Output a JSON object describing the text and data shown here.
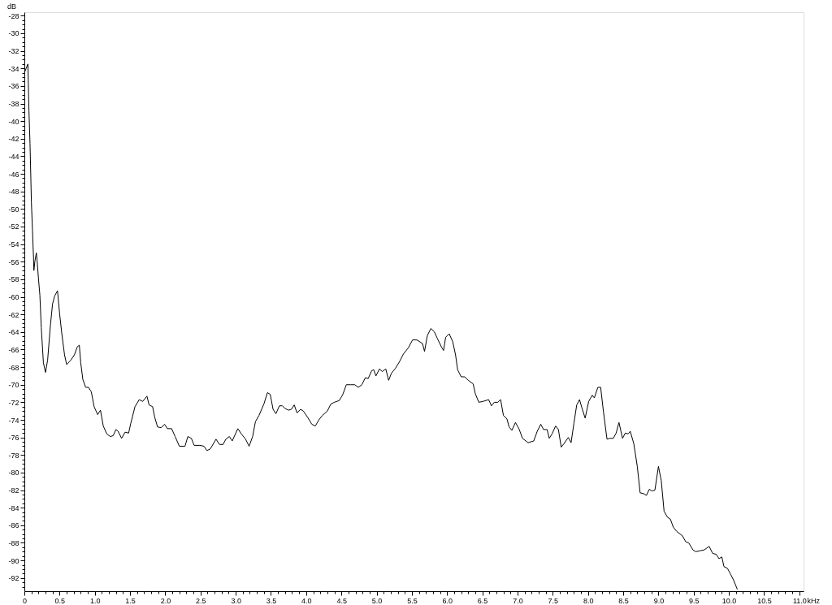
{
  "chart_data": {
    "type": "line",
    "ylabel": "dB",
    "xlabel": "kHz",
    "marker": "none",
    "line_style": "solid",
    "xlim": [
      0,
      11.06
    ],
    "ylim": [
      -93.5,
      -27.6
    ],
    "xticks": [
      {
        "value": 0,
        "label": "0"
      },
      {
        "value": 0.1,
        "label": null
      },
      {
        "value": 0.2,
        "label": null
      },
      {
        "value": 0.3,
        "label": null
      },
      {
        "value": 0.4,
        "label": null
      },
      {
        "value": 0.5,
        "label": "0.5"
      },
      {
        "value": 0.6,
        "label": null
      },
      {
        "value": 0.7,
        "label": null
      },
      {
        "value": 0.8,
        "label": null
      },
      {
        "value": 0.9,
        "label": null
      },
      {
        "value": 1.0,
        "label": "1.0"
      },
      {
        "value": 1.1,
        "label": null
      },
      {
        "value": 1.2,
        "label": null
      },
      {
        "value": 1.3,
        "label": null
      },
      {
        "value": 1.4,
        "label": null
      },
      {
        "value": 1.5,
        "label": "1.5"
      },
      {
        "value": 1.6,
        "label": null
      },
      {
        "value": 1.7,
        "label": null
      },
      {
        "value": 1.8,
        "label": null
      },
      {
        "value": 1.9,
        "label": null
      },
      {
        "value": 2.0,
        "label": "2.0"
      },
      {
        "value": 2.1,
        "label": null
      },
      {
        "value": 2.2,
        "label": null
      },
      {
        "value": 2.3,
        "label": null
      },
      {
        "value": 2.4,
        "label": null
      },
      {
        "value": 2.5,
        "label": "2.5"
      },
      {
        "value": 2.6,
        "label": null
      },
      {
        "value": 2.7,
        "label": null
      },
      {
        "value": 2.8,
        "label": null
      },
      {
        "value": 2.9,
        "label": null
      },
      {
        "value": 3.0,
        "label": "3.0"
      },
      {
        "value": 3.1,
        "label": null
      },
      {
        "value": 3.2,
        "label": null
      },
      {
        "value": 3.3,
        "label": null
      },
      {
        "value": 3.4,
        "label": null
      },
      {
        "value": 3.5,
        "label": "3.5"
      },
      {
        "value": 3.6,
        "label": null
      },
      {
        "value": 3.7,
        "label": null
      },
      {
        "value": 3.8,
        "label": null
      },
      {
        "value": 3.9,
        "label": null
      },
      {
        "value": 4.0,
        "label": "4.0"
      },
      {
        "value": 4.1,
        "label": null
      },
      {
        "value": 4.2,
        "label": null
      },
      {
        "value": 4.3,
        "label": null
      },
      {
        "value": 4.4,
        "label": null
      },
      {
        "value": 4.5,
        "label": "4.5"
      },
      {
        "value": 4.6,
        "label": null
      },
      {
        "value": 4.7,
        "label": null
      },
      {
        "value": 4.8,
        "label": null
      },
      {
        "value": 4.9,
        "label": null
      },
      {
        "value": 5.0,
        "label": "5.0"
      },
      {
        "value": 5.1,
        "label": null
      },
      {
        "value": 5.2,
        "label": null
      },
      {
        "value": 5.3,
        "label": null
      },
      {
        "value": 5.4,
        "label": null
      },
      {
        "value": 5.5,
        "label": "5.5"
      },
      {
        "value": 5.6,
        "label": null
      },
      {
        "value": 5.7,
        "label": null
      },
      {
        "value": 5.8,
        "label": null
      },
      {
        "value": 5.9,
        "label": null
      },
      {
        "value": 6.0,
        "label": "6.0"
      },
      {
        "value": 6.1,
        "label": null
      },
      {
        "value": 6.2,
        "label": null
      },
      {
        "value": 6.3,
        "label": null
      },
      {
        "value": 6.4,
        "label": null
      },
      {
        "value": 6.5,
        "label": "6.5"
      },
      {
        "value": 6.6,
        "label": null
      },
      {
        "value": 6.7,
        "label": null
      },
      {
        "value": 6.8,
        "label": null
      },
      {
        "value": 6.9,
        "label": null
      },
      {
        "value": 7.0,
        "label": "7.0"
      },
      {
        "value": 7.1,
        "label": null
      },
      {
        "value": 7.2,
        "label": null
      },
      {
        "value": 7.3,
        "label": null
      },
      {
        "value": 7.4,
        "label": null
      },
      {
        "value": 7.5,
        "label": "7.5"
      },
      {
        "value": 7.6,
        "label": null
      },
      {
        "value": 7.7,
        "label": null
      },
      {
        "value": 7.8,
        "label": null
      },
      {
        "value": 7.9,
        "label": null
      },
      {
        "value": 8.0,
        "label": "8.0"
      },
      {
        "value": 8.1,
        "label": null
      },
      {
        "value": 8.2,
        "label": null
      },
      {
        "value": 8.3,
        "label": null
      },
      {
        "value": 8.4,
        "label": null
      },
      {
        "value": 8.5,
        "label": "8.5"
      },
      {
        "value": 8.6,
        "label": null
      },
      {
        "value": 8.7,
        "label": null
      },
      {
        "value": 8.8,
        "label": null
      },
      {
        "value": 8.9,
        "label": null
      },
      {
        "value": 9.0,
        "label": "9.0"
      },
      {
        "value": 9.1,
        "label": null
      },
      {
        "value": 9.2,
        "label": null
      },
      {
        "value": 9.3,
        "label": null
      },
      {
        "value": 9.4,
        "label": null
      },
      {
        "value": 9.5,
        "label": "9.5"
      },
      {
        "value": 9.6,
        "label": null
      },
      {
        "value": 9.7,
        "label": null
      },
      {
        "value": 9.8,
        "label": null
      },
      {
        "value": 9.9,
        "label": null
      },
      {
        "value": 10.0,
        "label": "10.0"
      },
      {
        "value": 10.1,
        "label": null
      },
      {
        "value": 10.2,
        "label": null
      },
      {
        "value": 10.3,
        "label": null
      },
      {
        "value": 10.4,
        "label": null
      },
      {
        "value": 10.5,
        "label": "10.5"
      },
      {
        "value": 10.6,
        "label": null
      },
      {
        "value": 10.7,
        "label": null
      },
      {
        "value": 10.8,
        "label": null
      },
      {
        "value": 10.9,
        "label": null
      },
      {
        "value": 11.0,
        "label": "11.0"
      }
    ],
    "yticks": [
      -28,
      {
        "value": -28.5,
        "label": null
      },
      {
        "value": -29,
        "label": null
      },
      {
        "value": -29.5,
        "label": null
      },
      -30,
      {
        "value": -30.5,
        "label": null
      },
      {
        "value": -31,
        "label": null
      },
      {
        "value": -31.5,
        "label": null
      },
      -32,
      {
        "value": -32.5,
        "label": null
      },
      {
        "value": -33,
        "label": null
      },
      {
        "value": -33.5,
        "label": null
      },
      -34,
      {
        "value": -34.5,
        "label": null
      },
      {
        "value": -35,
        "label": null
      },
      {
        "value": -35.5,
        "label": null
      },
      -36,
      {
        "value": -36.5,
        "label": null
      },
      {
        "value": -37,
        "label": null
      },
      {
        "value": -37.5,
        "label": null
      },
      -38,
      {
        "value": -38.5,
        "label": null
      },
      {
        "value": -39,
        "label": null
      },
      {
        "value": -39.5,
        "label": null
      },
      -40,
      {
        "value": -40.5,
        "label": null
      },
      {
        "value": -41,
        "label": null
      },
      {
        "value": -41.5,
        "label": null
      },
      -42,
      {
        "value": -42.5,
        "label": null
      },
      {
        "value": -43,
        "label": null
      },
      {
        "value": -43.5,
        "label": null
      },
      -44,
      {
        "value": -44.5,
        "label": null
      },
      {
        "value": -45,
        "label": null
      },
      {
        "value": -45.5,
        "label": null
      },
      -46,
      {
        "value": -46.5,
        "label": null
      },
      {
        "value": -47,
        "label": null
      },
      {
        "value": -47.5,
        "label": null
      },
      -48,
      {
        "value": -48.5,
        "label": null
      },
      {
        "value": -49,
        "label": null
      },
      {
        "value": -49.5,
        "label": null
      },
      -50,
      {
        "value": -50.5,
        "label": null
      },
      {
        "value": -51,
        "label": null
      },
      {
        "value": -51.5,
        "label": null
      },
      -52,
      {
        "value": -52.5,
        "label": null
      },
      {
        "value": -53,
        "label": null
      },
      {
        "value": -53.5,
        "label": null
      },
      -54,
      {
        "value": -54.5,
        "label": null
      },
      {
        "value": -55,
        "label": null
      },
      {
        "value": -55.5,
        "label": null
      },
      -56,
      {
        "value": -56.5,
        "label": null
      },
      {
        "value": -57,
        "label": null
      },
      {
        "value": -57.5,
        "label": null
      },
      -58,
      {
        "value": -58.5,
        "label": null
      },
      {
        "value": -59,
        "label": null
      },
      {
        "value": -59.5,
        "label": null
      },
      -60,
      {
        "value": -60.5,
        "label": null
      },
      {
        "value": -61,
        "label": null
      },
      {
        "value": -61.5,
        "label": null
      },
      -62,
      {
        "value": -62.5,
        "label": null
      },
      {
        "value": -63,
        "label": null
      },
      {
        "value": -63.5,
        "label": null
      },
      -64,
      {
        "value": -64.5,
        "label": null
      },
      {
        "value": -65,
        "label": null
      },
      {
        "value": -65.5,
        "label": null
      },
      -66,
      {
        "value": -66.5,
        "label": null
      },
      {
        "value": -67,
        "label": null
      },
      {
        "value": -67.5,
        "label": null
      },
      -68,
      {
        "value": -68.5,
        "label": null
      },
      {
        "value": -69,
        "label": null
      },
      {
        "value": -69.5,
        "label": null
      },
      -70,
      {
        "value": -70.5,
        "label": null
      },
      {
        "value": -71,
        "label": null
      },
      {
        "value": -71.5,
        "label": null
      },
      -72,
      {
        "value": -72.5,
        "label": null
      },
      {
        "value": -73,
        "label": null
      },
      {
        "value": -73.5,
        "label": null
      },
      -74,
      {
        "value": -74.5,
        "label": null
      },
      {
        "value": -75,
        "label": null
      },
      {
        "value": -75.5,
        "label": null
      },
      -76,
      {
        "value": -76.5,
        "label": null
      },
      {
        "value": -77,
        "label": null
      },
      {
        "value": -77.5,
        "label": null
      },
      -78,
      {
        "value": -78.5,
        "label": null
      },
      {
        "value": -79,
        "label": null
      },
      {
        "value": -79.5,
        "label": null
      },
      -80,
      {
        "value": -80.5,
        "label": null
      },
      {
        "value": -81,
        "label": null
      },
      {
        "value": -81.5,
        "label": null
      },
      -82,
      {
        "value": -82.5,
        "label": null
      },
      {
        "value": -83,
        "label": null
      },
      {
        "value": -83.5,
        "label": null
      },
      -84,
      {
        "value": -84.5,
        "label": null
      },
      {
        "value": -85,
        "label": null
      },
      {
        "value": -85.5,
        "label": null
      },
      -86,
      {
        "value": -86.5,
        "label": null
      },
      {
        "value": -87,
        "label": null
      },
      {
        "value": -87.5,
        "label": null
      },
      -88,
      {
        "value": -88.5,
        "label": null
      },
      {
        "value": -89,
        "label": null
      },
      {
        "value": -89.5,
        "label": null
      },
      -90,
      {
        "value": -90.5,
        "label": null
      },
      {
        "value": -91,
        "label": null
      },
      {
        "value": -91.5,
        "label": null
      },
      -92,
      {
        "value": -92.5,
        "label": null
      },
      {
        "value": -93,
        "label": null
      }
    ],
    "series": [
      {
        "color": "#000000",
        "x": [
          0,
          0.05,
          0.065,
          0.08,
          0.09,
          0.1,
          0.115,
          0.13,
          0.135,
          0.15,
          0.17,
          0.18,
          0.2,
          0.22,
          0.24,
          0.27,
          0.3,
          0.33,
          0.37,
          0.4,
          0.43,
          0.47,
          0.5,
          0.53,
          0.57,
          0.6,
          0.66,
          0.71,
          0.75,
          0.78,
          0.8,
          0.83,
          0.87,
          0.91,
          0.95,
          0.99,
          1.04,
          1.08,
          1.12,
          1.17,
          1.22,
          1.26,
          1.3,
          1.33,
          1.38,
          1.43,
          1.48,
          1.51,
          1.57,
          1.63,
          1.68,
          1.74,
          1.77,
          1.82,
          1.85,
          1.89,
          1.94,
          1.99,
          2.03,
          2.09,
          2.14,
          2.2,
          2.28,
          2.32,
          2.37,
          2.41,
          2.49,
          2.55,
          2.59,
          2.64,
          2.72,
          2.77,
          2.82,
          2.86,
          2.91,
          2.95,
          3.03,
          3.08,
          3.14,
          3.19,
          3.24,
          3.28,
          3.33,
          3.4,
          3.45,
          3.49,
          3.53,
          3.57,
          3.62,
          3.66,
          3.7,
          3.75,
          3.79,
          3.83,
          3.87,
          3.92,
          3.96,
          4.02,
          4.08,
          4.13,
          4.18,
          4.23,
          4.3,
          4.35,
          4.4,
          4.47,
          4.52,
          4.57,
          4.63,
          4.69,
          4.74,
          4.79,
          4.84,
          4.88,
          4.93,
          4.96,
          4.99,
          5.04,
          5.08,
          5.13,
          5.17,
          5.21,
          5.27,
          5.33,
          5.38,
          5.45,
          5.51,
          5.57,
          5.65,
          5.68,
          5.72,
          5.77,
          5.82,
          5.86,
          5.92,
          5.95,
          5.98,
          6.03,
          6.08,
          6.12,
          6.15,
          6.2,
          6.25,
          6.3,
          6.37,
          6.4,
          6.45,
          6.51,
          6.59,
          6.63,
          6.67,
          6.72,
          6.76,
          6.8,
          6.85,
          6.88,
          6.92,
          6.97,
          7.02,
          7.07,
          7.15,
          7.23,
          7.28,
          7.33,
          7.37,
          7.42,
          7.45,
          7.49,
          7.54,
          7.58,
          7.62,
          7.66,
          7.72,
          7.76,
          7.8,
          7.84,
          7.88,
          7.92,
          7.96,
          8.01,
          8.06,
          8.09,
          8.14,
          8.18,
          8.22,
          8.27,
          8.31,
          8.36,
          8.4,
          8.44,
          8.49,
          8.53,
          8.57,
          8.6,
          8.65,
          8.7,
          8.74,
          8.79,
          8.83,
          8.87,
          8.91,
          8.95,
          9.0,
          9.04,
          9.08,
          9.13,
          9.17,
          9.21,
          9.26,
          9.34,
          9.39,
          9.43,
          9.49,
          9.53,
          9.59,
          9.65,
          9.72,
          9.77,
          9.82,
          9.86,
          9.9,
          9.93,
          9.98,
          10.02,
          10.07,
          10.12
        ],
        "values": [
          -34.5,
          -33.5,
          -38.8,
          -42.5,
          -45.9,
          -49.3,
          -52.4,
          -55.6,
          -57.0,
          -55.9,
          -55.0,
          -55.8,
          -57.9,
          -59.8,
          -63.5,
          -67.5,
          -68.6,
          -67.2,
          -63.2,
          -60.8,
          -59.9,
          -59.3,
          -61.9,
          -64.1,
          -66.6,
          -67.7,
          -67.2,
          -66.6,
          -65.7,
          -65.5,
          -67.5,
          -69.4,
          -70.3,
          -70.3,
          -70.8,
          -72.5,
          -73.4,
          -72.9,
          -74.7,
          -75.6,
          -75.9,
          -75.8,
          -75.1,
          -75.3,
          -76.1,
          -75.4,
          -75.5,
          -74.4,
          -72.5,
          -71.7,
          -71.9,
          -71.3,
          -72.3,
          -72.5,
          -73.7,
          -74.8,
          -74.9,
          -74.5,
          -75.0,
          -75.0,
          -75.9,
          -77.0,
          -77.0,
          -75.9,
          -76.1,
          -76.9,
          -76.9,
          -77.0,
          -77.5,
          -77.3,
          -76.2,
          -76.8,
          -76.8,
          -76.2,
          -75.9,
          -76.4,
          -75.0,
          -75.6,
          -76.2,
          -77.0,
          -75.9,
          -74.2,
          -73.5,
          -72.2,
          -70.9,
          -71.1,
          -72.8,
          -73.3,
          -72.4,
          -72.4,
          -72.7,
          -72.9,
          -72.8,
          -72.3,
          -73.2,
          -72.8,
          -73.0,
          -73.7,
          -74.5,
          -74.7,
          -74.0,
          -73.5,
          -73.0,
          -72.2,
          -72.0,
          -71.8,
          -71.1,
          -70.0,
          -70.0,
          -70.0,
          -70.3,
          -70.0,
          -69.2,
          -69.3,
          -68.4,
          -68.3,
          -69.0,
          -68.2,
          -68.5,
          -68.2,
          -69.5,
          -68.7,
          -68.1,
          -67.3,
          -66.5,
          -65.8,
          -64.9,
          -64.9,
          -65.3,
          -66.2,
          -64.4,
          -63.6,
          -64.0,
          -64.7,
          -65.7,
          -66.1,
          -64.6,
          -64.2,
          -65.1,
          -66.6,
          -68.3,
          -69.1,
          -69.1,
          -69.5,
          -69.9,
          -71.0,
          -72.0,
          -71.9,
          -71.7,
          -72.4,
          -72.0,
          -72.0,
          -71.7,
          -73.5,
          -73.9,
          -74.8,
          -75.2,
          -74.3,
          -75.0,
          -76.1,
          -76.6,
          -76.4,
          -75.3,
          -74.5,
          -75.1,
          -75.1,
          -76.1,
          -75.6,
          -74.7,
          -75.1,
          -77.1,
          -76.7,
          -76.0,
          -76.6,
          -74.4,
          -72.3,
          -71.7,
          -72.8,
          -73.8,
          -71.9,
          -71.2,
          -71.5,
          -70.3,
          -70.3,
          -73.1,
          -76.2,
          -76.1,
          -76.1,
          -75.5,
          -74.3,
          -76.1,
          -75.5,
          -75.6,
          -75.3,
          -76.7,
          -79.3,
          -82.3,
          -82.4,
          -82.6,
          -81.9,
          -82.1,
          -82.0,
          -79.3,
          -80.9,
          -84.4,
          -85.1,
          -85.3,
          -86.2,
          -86.7,
          -87.2,
          -87.9,
          -88.0,
          -88.8,
          -89.0,
          -88.9,
          -88.8,
          -88.4,
          -89.2,
          -89.3,
          -89.8,
          -89.6,
          -90.7,
          -90.9,
          -91.5,
          -92.3,
          -93.3
        ]
      }
    ]
  }
}
